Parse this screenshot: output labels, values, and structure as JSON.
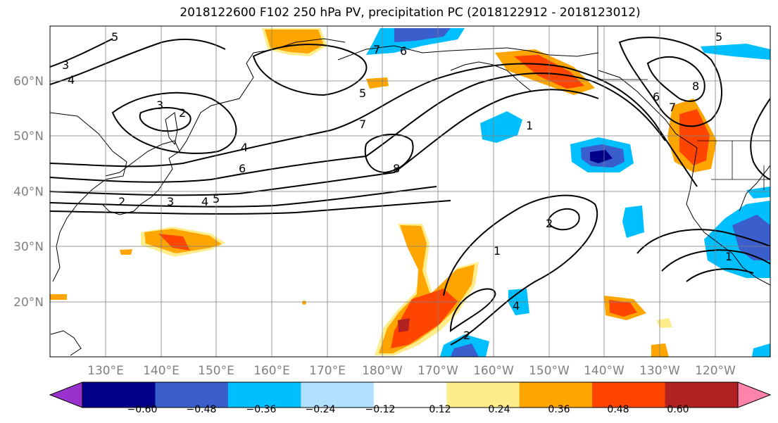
{
  "title": "2018122600 F102 250 hPa PV, precipitation PC (2018122912 - 2018123012)",
  "map": {
    "projection": "equirectangular",
    "lon_range": [
      120,
      250
    ],
    "lat_range": [
      10,
      70
    ],
    "lon_ticks": [
      "130°E",
      "140°E",
      "150°E",
      "160°E",
      "170°E",
      "180°W",
      "170°W",
      "160°W",
      "150°W",
      "140°W",
      "130°W",
      "120°W"
    ],
    "lat_ticks": [
      "20°N",
      "30°N",
      "40°N",
      "50°N",
      "60°N"
    ],
    "grid": true
  },
  "pv_contour_labels": [
    "5",
    "3",
    "4",
    "3",
    "2",
    "4",
    "6",
    "5",
    "7",
    "6",
    "7",
    "8",
    "5",
    "8",
    "6",
    "7",
    "1",
    "1",
    "2",
    "2",
    "4",
    "2",
    "3",
    "4",
    "5",
    "1"
  ],
  "colorbar": {
    "tick_labels": [
      "−0.60",
      "−0.48",
      "−0.36",
      "−0.24",
      "−0.12",
      "0.12",
      "0.24",
      "0.36",
      "0.48",
      "0.60"
    ],
    "colors": [
      "#9932CC",
      "#00008B",
      "#3A5FCD",
      "#00BFFF",
      "#B0E2FF",
      "#FFFFFF",
      "#FFEC8B",
      "#FFA500",
      "#FF4500",
      "#B22222",
      "#FF82AB"
    ],
    "extend": "both"
  }
}
